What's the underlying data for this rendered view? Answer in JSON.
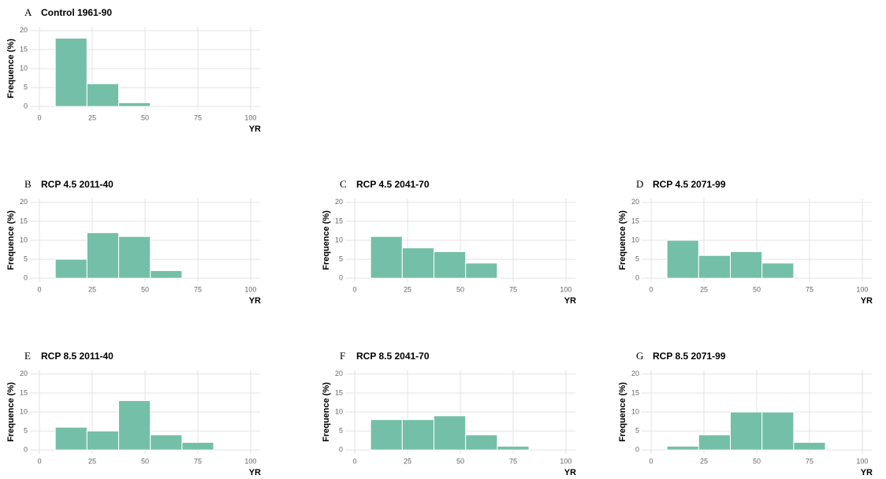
{
  "chart_data": [
    {
      "type": "histogram",
      "panel_label": "A",
      "title": "Control 1961-90",
      "ylabel": "Frequence (%)",
      "xlabel": "YR",
      "bins": [
        7.5,
        22.5,
        37.5,
        52.5
      ],
      "values": [
        18,
        6,
        1
      ],
      "color": "#74bfa7",
      "xlim": [
        -4.5,
        104.5
      ],
      "ylim": [
        -1,
        21
      ],
      "xticks": [
        0,
        25,
        50,
        75,
        100
      ],
      "yticks": [
        0,
        5,
        10,
        15,
        20
      ],
      "grid": true
    },
    {
      "type": "histogram",
      "panel_label": "B",
      "title": "RCP 4.5 2011-40",
      "ylabel": "Frequence (%)",
      "xlabel": "YR",
      "bins": [
        7.5,
        22.5,
        37.5,
        52.5,
        67.5
      ],
      "values": [
        5,
        12,
        11,
        2
      ],
      "color": "#74bfa7",
      "xlim": [
        -4.5,
        104.5
      ],
      "ylim": [
        -1,
        21
      ],
      "xticks": [
        0,
        25,
        50,
        75,
        100
      ],
      "yticks": [
        0,
        5,
        10,
        15,
        20
      ],
      "grid": true
    },
    {
      "type": "histogram",
      "panel_label": "C",
      "title": "RCP 4.5 2041-70",
      "ylabel": "Frequence (%)",
      "xlabel": "YR",
      "bins": [
        7.5,
        22.5,
        37.5,
        52.5,
        67.5
      ],
      "values": [
        11,
        8,
        7,
        4
      ],
      "color": "#74bfa7",
      "xlim": [
        -4.5,
        104.5
      ],
      "ylim": [
        -1,
        21
      ],
      "xticks": [
        0,
        25,
        50,
        75,
        100
      ],
      "yticks": [
        0,
        5,
        10,
        15,
        20
      ],
      "grid": true
    },
    {
      "type": "histogram",
      "panel_label": "D",
      "title": "RCP 4.5 2071-99",
      "ylabel": "Frequence (%)",
      "xlabel": "YR",
      "bins": [
        7.5,
        22.5,
        37.5,
        52.5,
        67.5
      ],
      "values": [
        10,
        6,
        7,
        4
      ],
      "color": "#74bfa7",
      "xlim": [
        -4.5,
        104.5
      ],
      "ylim": [
        -1,
        21
      ],
      "xticks": [
        0,
        25,
        50,
        75,
        100
      ],
      "yticks": [
        0,
        5,
        10,
        15,
        20
      ],
      "grid": true
    },
    {
      "type": "histogram",
      "panel_label": "E",
      "title": "RCP 8.5 2011-40",
      "ylabel": "Frequence (%)",
      "xlabel": "YR",
      "bins": [
        7.5,
        22.5,
        37.5,
        52.5,
        67.5,
        82.5
      ],
      "values": [
        6,
        5,
        13,
        4,
        2
      ],
      "color": "#74bfa7",
      "xlim": [
        -4.5,
        104.5
      ],
      "ylim": [
        -1,
        21
      ],
      "xticks": [
        0,
        25,
        50,
        75,
        100
      ],
      "yticks": [
        0,
        5,
        10,
        15,
        20
      ],
      "grid": true
    },
    {
      "type": "histogram",
      "panel_label": "F",
      "title": "RCP 8.5 2041-70",
      "ylabel": "Frequence (%)",
      "xlabel": "YR",
      "bins": [
        7.5,
        22.5,
        37.5,
        52.5,
        67.5,
        82.5
      ],
      "values": [
        8,
        8,
        9,
        4,
        1
      ],
      "color": "#74bfa7",
      "xlim": [
        -4.5,
        104.5
      ],
      "ylim": [
        -1,
        21
      ],
      "xticks": [
        0,
        25,
        50,
        75,
        100
      ],
      "yticks": [
        0,
        5,
        10,
        15,
        20
      ],
      "grid": true
    },
    {
      "type": "histogram",
      "panel_label": "G",
      "title": "RCP 8.5 2071-99",
      "ylabel": "Frequence (%)",
      "xlabel": "YR",
      "bins": [
        7.5,
        22.5,
        37.5,
        52.5,
        67.5,
        82.5
      ],
      "values": [
        1,
        4,
        10,
        10,
        2
      ],
      "color": "#74bfa7",
      "xlim": [
        -4.5,
        104.5
      ],
      "ylim": [
        -1,
        21
      ],
      "xticks": [
        0,
        25,
        50,
        75,
        100
      ],
      "yticks": [
        0,
        5,
        10,
        15,
        20
      ],
      "grid": true
    }
  ]
}
